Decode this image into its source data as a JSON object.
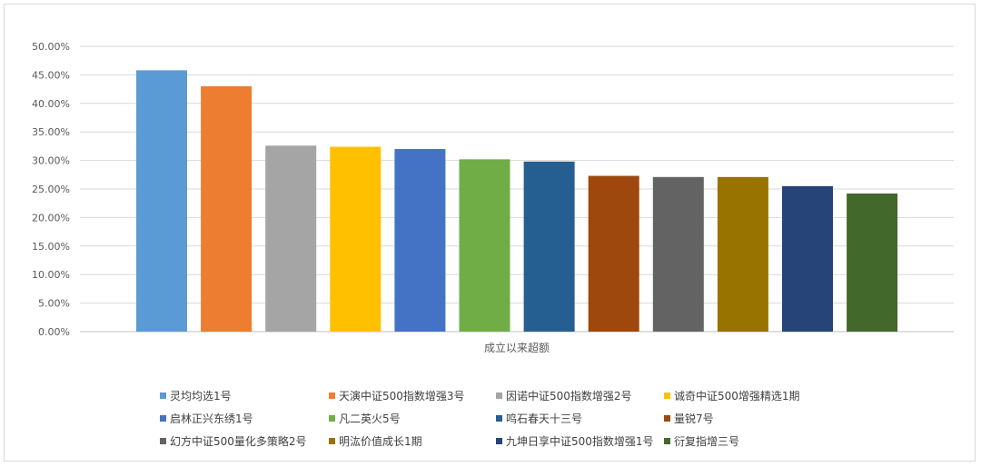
{
  "chart_data": {
    "type": "bar",
    "categories": [
      "成立以来超额"
    ],
    "series": [
      {
        "name": "灵均均选1号",
        "values": [
          45.8
        ],
        "color": "#5B9BD5"
      },
      {
        "name": "天演中证500指数增强3号",
        "values": [
          43.0
        ],
        "color": "#ED7D31"
      },
      {
        "name": "因诺中证500指数增强2号",
        "values": [
          32.6
        ],
        "color": "#A5A5A5"
      },
      {
        "name": "诚奇中证500增强精选1期",
        "values": [
          32.4
        ],
        "color": "#FFC000"
      },
      {
        "name": "启林正兴东绣1号",
        "values": [
          32.0
        ],
        "color": "#4472C4"
      },
      {
        "name": "凡二英火5号",
        "values": [
          30.2
        ],
        "color": "#70AD47"
      },
      {
        "name": "鸣石春天十三号",
        "values": [
          29.8
        ],
        "color": "#255E91"
      },
      {
        "name": "量锐7号",
        "values": [
          27.3
        ],
        "color": "#9E480E"
      },
      {
        "name": "幻方中证500量化多策略2号",
        "values": [
          27.1
        ],
        "color": "#636363"
      },
      {
        "name": "明汯价值成长1期",
        "values": [
          27.1
        ],
        "color": "#997300"
      },
      {
        "name": "九坤日享中证500指数增强1号",
        "values": [
          25.5
        ],
        "color": "#264478"
      },
      {
        "name": "衍复指增三号",
        "values": [
          24.2
        ],
        "color": "#43682B"
      }
    ],
    "yticks": [
      "0.00%",
      "5.00%",
      "10.00%",
      "15.00%",
      "20.00%",
      "25.00%",
      "30.00%",
      "35.00%",
      "40.00%",
      "45.00%",
      "50.00%"
    ],
    "ylim": [
      0,
      50
    ],
    "unit": "%",
    "grid": true,
    "legend_position": "bottom"
  }
}
